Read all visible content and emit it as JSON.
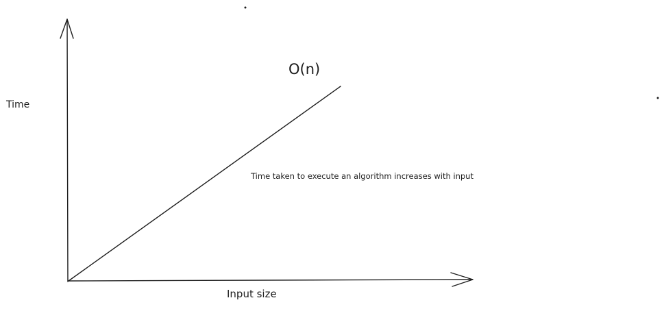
{
  "diagram": {
    "axes": {
      "y_label": "Time",
      "x_label": "Input size"
    },
    "curve": {
      "label": "O(n)",
      "shape": "linear"
    },
    "annotation": "Time taken to execute an algorithm increases with input"
  },
  "colors": {
    "ink": "#1e1e1e",
    "background": "#ffffff"
  }
}
